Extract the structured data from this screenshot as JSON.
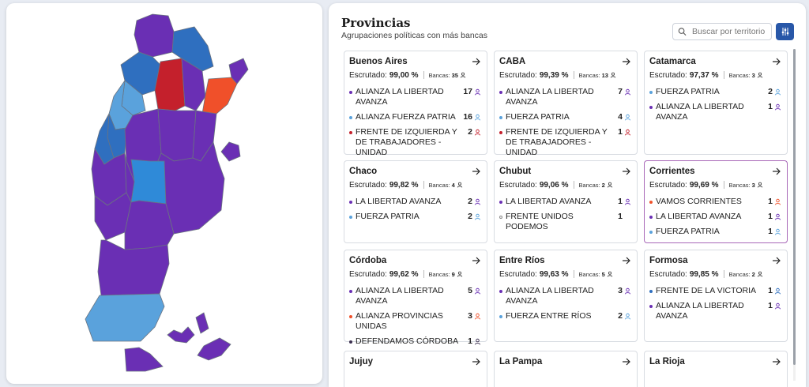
{
  "panel": {
    "title": "Provincias",
    "subtitle": "Agrupaciones políticas con más bancas",
    "search_placeholder": "Buscar por territorio"
  },
  "labels": {
    "scrutiny": "Escrutado:",
    "seats": "Bancas:"
  },
  "colors": {
    "libertad_avanza": "#6a2fb4",
    "fuerza_patria": "#5aa2dc",
    "izquierda": "#c4202c",
    "provinciales": "#f0502a",
    "defendamos": "#3b2f4f",
    "victoria": "#2f6fbf",
    "accent": "#2857a8",
    "selected_border": "#a868b8"
  },
  "cards": [
    {
      "name": "Buenos Aires",
      "scrutiny": "99,00 %",
      "seats": "35",
      "parties": [
        {
          "name": "ALIANZA LA LIBERTAD AVANZA",
          "seats": "17",
          "color": "#6a2fb4"
        },
        {
          "name": "ALIANZA FUERZA PATRIA",
          "seats": "16",
          "color": "#5aa2dc"
        },
        {
          "name": "FRENTE DE IZQUIERDA Y DE TRABAJADORES - UNIDAD",
          "seats": "2",
          "color": "#c4202c"
        }
      ]
    },
    {
      "name": "CABA",
      "scrutiny": "99,39 %",
      "seats": "13",
      "parties": [
        {
          "name": "ALIANZA LA LIBERTAD AVANZA",
          "seats": "7",
          "color": "#6a2fb4"
        },
        {
          "name": "FUERZA PATRIA",
          "seats": "4",
          "color": "#5aa2dc"
        },
        {
          "name": "FRENTE DE IZQUIERDA Y DE TRABAJADORES - UNIDAD",
          "seats": "1",
          "color": "#c4202c"
        }
      ]
    },
    {
      "name": "Catamarca",
      "scrutiny": "97,37 %",
      "seats": "3",
      "parties": [
        {
          "name": "FUERZA PATRIA",
          "seats": "2",
          "color": "#5aa2dc"
        },
        {
          "name": "ALIANZA LA LIBERTAD AVANZA",
          "seats": "1",
          "color": "#6a2fb4"
        }
      ]
    },
    {
      "name": "Chaco",
      "scrutiny": "99,82 %",
      "seats": "4",
      "parties": [
        {
          "name": "LA LIBERTAD AVANZA",
          "seats": "2",
          "color": "#6a2fb4"
        },
        {
          "name": "FUERZA PATRIA",
          "seats": "2",
          "color": "#5aa2dc"
        }
      ]
    },
    {
      "name": "Chubut",
      "scrutiny": "99,06 %",
      "seats": "2",
      "parties": [
        {
          "name": "LA LIBERTAD AVANZA",
          "seats": "1",
          "color": "#6a2fb4"
        },
        {
          "name": "FRENTE UNIDOS PODEMOS",
          "seats": "1",
          "color": "hollow"
        }
      ]
    },
    {
      "name": "Corrientes",
      "scrutiny": "99,69 %",
      "seats": "3",
      "selected": true,
      "parties": [
        {
          "name": "VAMOS CORRIENTES",
          "seats": "1",
          "color": "#f0502a"
        },
        {
          "name": "LA LIBERTAD AVANZA",
          "seats": "1",
          "color": "#6a2fb4"
        },
        {
          "name": "FUERZA PATRIA",
          "seats": "1",
          "color": "#5aa2dc"
        }
      ]
    },
    {
      "name": "Córdoba",
      "scrutiny": "99,62 %",
      "seats": "9",
      "parties": [
        {
          "name": "ALIANZA LA LIBERTAD AVANZA",
          "seats": "5",
          "color": "#6a2fb4"
        },
        {
          "name": "ALIANZA PROVINCIAS UNIDAS",
          "seats": "3",
          "color": "#f0502a"
        },
        {
          "name": "DEFENDAMOS CÓRDOBA",
          "seats": "1",
          "color": "#3b2f4f"
        }
      ]
    },
    {
      "name": "Entre Ríos",
      "scrutiny": "99,63 %",
      "seats": "5",
      "parties": [
        {
          "name": "ALIANZA LA LIBERTAD AVANZA",
          "seats": "3",
          "color": "#6a2fb4"
        },
        {
          "name": "FUERZA ENTRE RÍOS",
          "seats": "2",
          "color": "#5aa2dc"
        }
      ]
    },
    {
      "name": "Formosa",
      "scrutiny": "99,85 %",
      "seats": "2",
      "parties": [
        {
          "name": "FRENTE DE LA VICTORIA",
          "seats": "1",
          "color": "#2f6fbf"
        },
        {
          "name": "ALIANZA LA LIBERTAD AVANZA",
          "seats": "1",
          "color": "#6a2fb4"
        }
      ]
    },
    {
      "name": "Jujuy",
      "scrutiny": "",
      "seats": "",
      "parties": []
    },
    {
      "name": "La Pampa",
      "scrutiny": "",
      "seats": "",
      "parties": []
    },
    {
      "name": "La Rioja",
      "scrutiny": "",
      "seats": "",
      "parties": []
    }
  ],
  "map": {
    "icons": [
      "argentina-map"
    ],
    "province_colors": {
      "jujuy": "#6a2fb4",
      "salta": "#2f6fbf",
      "tucuman": "#5aa2dc",
      "catamarca": "#5aa2dc",
      "santiago": "#c4202c",
      "formosa": "#2f6fbf",
      "chaco": "#6a2fb4",
      "corrientes": "#f0502a",
      "misiones": "#6a2fb4",
      "larioja": "#2f6fbf",
      "sanjuan": "#2f6fbf",
      "cordoba": "#6a2fb4",
      "santafe": "#6a2fb4",
      "entrerios": "#6a2fb4",
      "buenosaires": "#6a2fb4",
      "lapampa": "#2f8ad8",
      "mendoza": "#6a2fb4",
      "sanluis": "#6a2fb4",
      "neuquen": "#6a2fb4",
      "rionegro": "#6a2fb4",
      "chubut": "#6a2fb4",
      "santacruz": "#5aa2dc",
      "tierradelfuego": "#6a2fb4"
    }
  }
}
